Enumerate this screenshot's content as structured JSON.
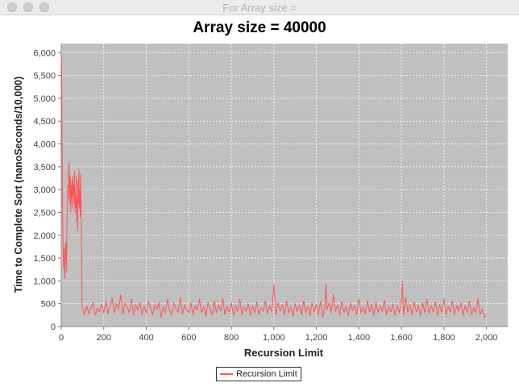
{
  "window": {
    "title": "For Array size ="
  },
  "colors": {
    "series": "#ff5555",
    "plot_background": "#c0c0c0",
    "gridline": "#ffffff"
  },
  "chart_data": {
    "type": "line",
    "title": "Array size = 40000",
    "xlabel": "Recursion Limit",
    "ylabel": "Time to Complete Sort (nanoSeconds/10,000)",
    "xlim": [
      0,
      2100
    ],
    "ylim": [
      0,
      6200
    ],
    "x_ticks": [
      0,
      200,
      400,
      600,
      800,
      1000,
      1200,
      1400,
      1600,
      1800,
      2000
    ],
    "x_tick_labels": [
      "0",
      "200",
      "400",
      "600",
      "800",
      "1,000",
      "1,200",
      "1,400",
      "1,600",
      "1,800",
      "2,000"
    ],
    "y_ticks": [
      0,
      500,
      1000,
      1500,
      2000,
      2500,
      3000,
      3500,
      4000,
      4500,
      5000,
      5500,
      6000
    ],
    "y_tick_labels": [
      "0",
      "500",
      "1,000",
      "1,500",
      "2,000",
      "2,500",
      "3,000",
      "3,500",
      "4,000",
      "4,500",
      "5,000",
      "5,500",
      "6,000"
    ],
    "grid": true,
    "legend_position": "bottom-center",
    "series": [
      {
        "name": "Recursion Limit",
        "points": [
          [
            1,
            5900
          ],
          [
            3,
            4800
          ],
          [
            5,
            3200
          ],
          [
            7,
            2300
          ],
          [
            9,
            1600
          ],
          [
            11,
            1300
          ],
          [
            13,
            1700
          ],
          [
            15,
            1100
          ],
          [
            17,
            1050
          ],
          [
            19,
            1800
          ],
          [
            21,
            1500
          ],
          [
            23,
            1850
          ],
          [
            25,
            1200
          ],
          [
            27,
            2300
          ],
          [
            29,
            2600
          ],
          [
            31,
            3100
          ],
          [
            33,
            2800
          ],
          [
            35,
            3400
          ],
          [
            37,
            3600
          ],
          [
            39,
            3000
          ],
          [
            41,
            2700
          ],
          [
            43,
            3300
          ],
          [
            45,
            2500
          ],
          [
            47,
            3100
          ],
          [
            49,
            2800
          ],
          [
            51,
            3200
          ],
          [
            53,
            2600
          ],
          [
            55,
            3300
          ],
          [
            57,
            2900
          ],
          [
            59,
            3100
          ],
          [
            61,
            2700
          ],
          [
            63,
            3400
          ],
          [
            65,
            2500
          ],
          [
            67,
            2900
          ],
          [
            69,
            2600
          ],
          [
            71,
            3300
          ],
          [
            73,
            2300
          ],
          [
            75,
            2800
          ],
          [
            77,
            2100
          ],
          [
            79,
            3200
          ],
          [
            81,
            2700
          ],
          [
            83,
            3450
          ],
          [
            85,
            2600
          ],
          [
            87,
            3000
          ],
          [
            89,
            2400
          ],
          [
            91,
            3350
          ],
          [
            93,
            2700
          ],
          [
            95,
            1950
          ],
          [
            97,
            480
          ],
          [
            99,
            440
          ],
          [
            110,
            260
          ],
          [
            120,
            450
          ],
          [
            130,
            280
          ],
          [
            140,
            420
          ],
          [
            150,
            520
          ],
          [
            160,
            250
          ],
          [
            170,
            400
          ],
          [
            180,
            320
          ],
          [
            190,
            480
          ],
          [
            200,
            300
          ],
          [
            210,
            560
          ],
          [
            220,
            280
          ],
          [
            230,
            460
          ],
          [
            240,
            620
          ],
          [
            250,
            300
          ],
          [
            260,
            500
          ],
          [
            270,
            380
          ],
          [
            280,
            700
          ],
          [
            290,
            260
          ],
          [
            300,
            520
          ],
          [
            310,
            440
          ],
          [
            320,
            300
          ],
          [
            330,
            610
          ],
          [
            340,
            250
          ],
          [
            350,
            480
          ],
          [
            360,
            360
          ],
          [
            370,
            520
          ],
          [
            380,
            270
          ],
          [
            390,
            450
          ],
          [
            400,
            300
          ],
          [
            410,
            560
          ],
          [
            420,
            420
          ],
          [
            430,
            260
          ],
          [
            440,
            480
          ],
          [
            450,
            380
          ],
          [
            460,
            520
          ],
          [
            470,
            200
          ],
          [
            480,
            440
          ],
          [
            490,
            300
          ],
          [
            500,
            600
          ],
          [
            510,
            340
          ],
          [
            520,
            260
          ],
          [
            530,
            520
          ],
          [
            540,
            400
          ],
          [
            550,
            300
          ],
          [
            560,
            640
          ],
          [
            570,
            260
          ],
          [
            580,
            470
          ],
          [
            590,
            360
          ],
          [
            600,
            300
          ],
          [
            610,
            520
          ],
          [
            620,
            260
          ],
          [
            630,
            460
          ],
          [
            640,
            350
          ],
          [
            650,
            600
          ],
          [
            660,
            300
          ],
          [
            670,
            440
          ],
          [
            680,
            220
          ],
          [
            690,
            520
          ],
          [
            700,
            380
          ],
          [
            710,
            250
          ],
          [
            720,
            560
          ],
          [
            730,
            300
          ],
          [
            740,
            470
          ],
          [
            750,
            340
          ],
          [
            760,
            620
          ],
          [
            770,
            260
          ],
          [
            780,
            440
          ],
          [
            790,
            320
          ],
          [
            800,
            520
          ],
          [
            810,
            240
          ],
          [
            820,
            470
          ],
          [
            830,
            330
          ],
          [
            840,
            600
          ],
          [
            850,
            260
          ],
          [
            860,
            430
          ],
          [
            870,
            340
          ],
          [
            880,
            500
          ],
          [
            890,
            240
          ],
          [
            900,
            460
          ],
          [
            910,
            300
          ],
          [
            920,
            540
          ],
          [
            930,
            260
          ],
          [
            940,
            410
          ],
          [
            950,
            330
          ],
          [
            960,
            560
          ],
          [
            970,
            280
          ],
          [
            980,
            460
          ],
          [
            990,
            320
          ],
          [
            1000,
            900
          ],
          [
            1010,
            260
          ],
          [
            1020,
            520
          ],
          [
            1030,
            340
          ],
          [
            1040,
            480
          ],
          [
            1050,
            260
          ],
          [
            1060,
            560
          ],
          [
            1070,
            300
          ],
          [
            1080,
            440
          ],
          [
            1090,
            220
          ],
          [
            1100,
            500
          ],
          [
            1110,
            330
          ],
          [
            1120,
            470
          ],
          [
            1130,
            260
          ],
          [
            1140,
            560
          ],
          [
            1150,
            300
          ],
          [
            1160,
            440
          ],
          [
            1170,
            240
          ],
          [
            1180,
            520
          ],
          [
            1190,
            320
          ],
          [
            1200,
            480
          ],
          [
            1210,
            260
          ],
          [
            1220,
            560
          ],
          [
            1230,
            200
          ],
          [
            1240,
            460
          ],
          [
            1245,
            930
          ],
          [
            1250,
            380
          ],
          [
            1260,
            520
          ],
          [
            1270,
            300
          ],
          [
            1280,
            700
          ],
          [
            1290,
            340
          ],
          [
            1300,
            480
          ],
          [
            1310,
            260
          ],
          [
            1320,
            560
          ],
          [
            1330,
            300
          ],
          [
            1340,
            440
          ],
          [
            1350,
            240
          ],
          [
            1360,
            520
          ],
          [
            1370,
            340
          ],
          [
            1380,
            470
          ],
          [
            1390,
            260
          ],
          [
            1400,
            600
          ],
          [
            1410,
            300
          ],
          [
            1420,
            440
          ],
          [
            1430,
            280
          ],
          [
            1440,
            560
          ],
          [
            1450,
            320
          ],
          [
            1460,
            480
          ],
          [
            1470,
            240
          ],
          [
            1480,
            540
          ],
          [
            1490,
            300
          ],
          [
            1500,
            460
          ],
          [
            1510,
            330
          ],
          [
            1520,
            580
          ],
          [
            1530,
            260
          ],
          [
            1540,
            440
          ],
          [
            1550,
            320
          ],
          [
            1560,
            500
          ],
          [
            1570,
            240
          ],
          [
            1580,
            460
          ],
          [
            1590,
            300
          ],
          [
            1600,
            560
          ],
          [
            1605,
            1000
          ],
          [
            1610,
            260
          ],
          [
            1620,
            640
          ],
          [
            1630,
            300
          ],
          [
            1640,
            480
          ],
          [
            1650,
            260
          ],
          [
            1660,
            540
          ],
          [
            1670,
            320
          ],
          [
            1680,
            460
          ],
          [
            1690,
            240
          ],
          [
            1700,
            520
          ],
          [
            1710,
            300
          ],
          [
            1720,
            600
          ],
          [
            1730,
            280
          ],
          [
            1740,
            460
          ],
          [
            1750,
            320
          ],
          [
            1760,
            540
          ],
          [
            1770,
            240
          ],
          [
            1780,
            480
          ],
          [
            1790,
            300
          ],
          [
            1800,
            600
          ],
          [
            1810,
            260
          ],
          [
            1820,
            440
          ],
          [
            1830,
            320
          ],
          [
            1840,
            560
          ],
          [
            1850,
            260
          ],
          [
            1860,
            460
          ],
          [
            1870,
            340
          ],
          [
            1880,
            520
          ],
          [
            1890,
            240
          ],
          [
            1900,
            460
          ],
          [
            1910,
            300
          ],
          [
            1920,
            560
          ],
          [
            1930,
            260
          ],
          [
            1940,
            420
          ],
          [
            1950,
            300
          ],
          [
            1960,
            600
          ],
          [
            1970,
            260
          ],
          [
            1980,
            380
          ],
          [
            1990,
            200
          ],
          [
            2000,
            260
          ]
        ]
      }
    ]
  }
}
